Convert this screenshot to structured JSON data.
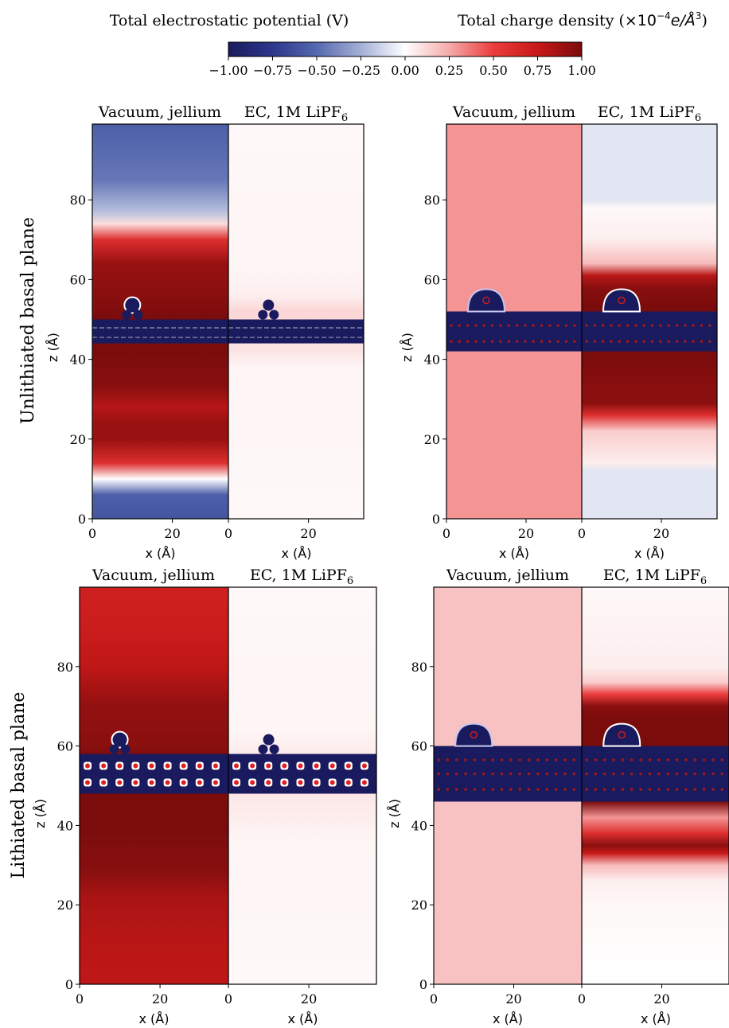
{
  "header": {
    "potential_title": "Total electrostatic potential (V)",
    "charge_title_prefix": "Total charge density (",
    "charge_title_unit": "×10",
    "charge_title_exp": "−4",
    "charge_title_unit2": "e/Å",
    "charge_title_exp2": "3",
    "charge_title_suffix": ")"
  },
  "colorbar": {
    "ticks": [
      "−1.00",
      "−0.75",
      "−0.50",
      "−0.25",
      "0.00",
      "0.25",
      "0.50",
      "0.75",
      "1.00"
    ],
    "colors": {
      "low": "#1a1a5e",
      "mid": "#ffffff",
      "high": "#7a0c0c"
    }
  },
  "row_labels": {
    "top": "Unlithiated basal plane",
    "bottom": "Lithiated basal plane"
  },
  "panel_labels": {
    "vacuum": "Vacuum, jellium",
    "ec_prefix": "EC, 1M LiPF",
    "ec_sub": "6"
  },
  "axis_labels": {
    "x": "x (Å)",
    "y": "z (Å)"
  },
  "chart_data": [
    {
      "type": "heatmap",
      "name": "Unlithiated potential",
      "panels": [
        "Vacuum, jellium",
        "EC, 1M LiPF6"
      ],
      "xlim": [
        0,
        34
      ],
      "ylim": [
        0,
        99
      ],
      "xticks": [
        0,
        20
      ],
      "yticks": [
        0,
        20,
        40,
        60,
        80
      ],
      "vacuum_profile": [
        [
          0,
          -0.6
        ],
        [
          6,
          -0.55
        ],
        [
          10,
          0.0
        ],
        [
          14,
          0.6
        ],
        [
          20,
          0.9
        ],
        [
          24,
          0.9
        ],
        [
          28,
          0.8
        ],
        [
          33,
          0.95
        ],
        [
          42,
          1.0
        ],
        [
          50,
          1.0
        ],
        [
          56,
          0.95
        ],
        [
          64,
          0.9
        ],
        [
          70,
          0.6
        ],
        [
          74,
          0.1
        ],
        [
          77,
          -0.2
        ],
        [
          85,
          -0.45
        ],
        [
          99,
          -0.55
        ]
      ],
      "ec_profile": [
        [
          0,
          0.02
        ],
        [
          38,
          0.03
        ],
        [
          42,
          0.08
        ],
        [
          52,
          0.12
        ],
        [
          56,
          0.05
        ],
        [
          62,
          0.03
        ],
        [
          99,
          0.02
        ]
      ],
      "electrode_z": [
        44,
        50
      ]
    },
    {
      "type": "heatmap",
      "name": "Unlithiated charge density",
      "panels": [
        "Vacuum, jellium",
        "EC, 1M LiPF6"
      ],
      "xlim": [
        0,
        34
      ],
      "ylim": [
        0,
        99
      ],
      "xticks": [
        0,
        20
      ],
      "yticks": [
        0,
        20,
        40,
        60,
        80
      ],
      "vacuum_profile": [
        [
          0,
          0.3
        ],
        [
          99,
          0.3
        ]
      ],
      "ec_profile": [
        [
          0,
          -0.08
        ],
        [
          12,
          -0.08
        ],
        [
          14,
          0.05
        ],
        [
          22,
          0.15
        ],
        [
          26,
          0.6
        ],
        [
          29,
          0.95
        ],
        [
          33,
          0.95
        ],
        [
          41,
          1.0
        ],
        [
          53,
          1.0
        ],
        [
          58,
          0.95
        ],
        [
          61,
          0.8
        ],
        [
          64,
          0.2
        ],
        [
          70,
          0.05
        ],
        [
          78,
          0.02
        ],
        [
          80,
          -0.08
        ],
        [
          99,
          -0.08
        ]
      ],
      "electrode_z": [
        42,
        52
      ]
    },
    {
      "type": "heatmap",
      "name": "Lithiated potential",
      "panels": [
        "Vacuum, jellium",
        "EC, 1M LiPF6"
      ],
      "xlim": [
        0,
        37
      ],
      "ylim": [
        0,
        100
      ],
      "xticks": [
        0,
        20
      ],
      "yticks": [
        0,
        20,
        40,
        60,
        80
      ],
      "vacuum_profile": [
        [
          0,
          0.78
        ],
        [
          12,
          0.8
        ],
        [
          22,
          0.85
        ],
        [
          28,
          0.95
        ],
        [
          40,
          1.0
        ],
        [
          56,
          1.0
        ],
        [
          60,
          0.95
        ],
        [
          70,
          0.92
        ],
        [
          80,
          0.78
        ],
        [
          90,
          0.72
        ],
        [
          100,
          0.7
        ]
      ],
      "ec_profile": [
        [
          0,
          0.02
        ],
        [
          36,
          0.03
        ],
        [
          44,
          0.06
        ],
        [
          50,
          0.08
        ],
        [
          58,
          0.06
        ],
        [
          64,
          0.03
        ],
        [
          100,
          0.02
        ]
      ],
      "electrode_z": [
        48,
        58
      ]
    },
    {
      "type": "heatmap",
      "name": "Lithiated charge density",
      "panels": [
        "Vacuum, jellium",
        "EC, 1M LiPF6"
      ],
      "xlim": [
        0,
        37
      ],
      "ylim": [
        0,
        100
      ],
      "xticks": [
        0,
        20
      ],
      "yticks": [
        0,
        20,
        40,
        60,
        80
      ],
      "vacuum_profile": [
        [
          0,
          0.18
        ],
        [
          100,
          0.18
        ]
      ],
      "ec_profile": [
        [
          0,
          0.0
        ],
        [
          20,
          0.02
        ],
        [
          26,
          0.05
        ],
        [
          30,
          0.2
        ],
        [
          33,
          0.75
        ],
        [
          35,
          0.95
        ],
        [
          38,
          0.6
        ],
        [
          42,
          0.3
        ],
        [
          46,
          1.0
        ],
        [
          60,
          1.0
        ],
        [
          66,
          1.0
        ],
        [
          70,
          0.95
        ],
        [
          73,
          0.5
        ],
        [
          76,
          0.15
        ],
        [
          80,
          0.05
        ],
        [
          100,
          0.02
        ]
      ],
      "electrode_z": [
        46,
        60
      ]
    }
  ]
}
